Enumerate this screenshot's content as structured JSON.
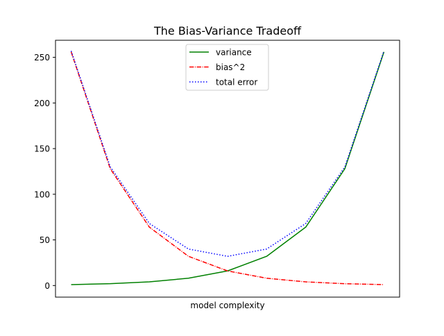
{
  "chart_data": {
    "type": "line",
    "title": "The Bias-Variance Tradeoff",
    "xlabel": "model complexity",
    "ylabel": "",
    "x": [
      0,
      1,
      2,
      3,
      4,
      5,
      6,
      7,
      8
    ],
    "xlim": [
      -0.4,
      8.4
    ],
    "ylim": [
      -12.7,
      268.7
    ],
    "yticks": [
      0,
      50,
      100,
      150,
      200,
      250
    ],
    "ytick_labels": [
      "0",
      "50",
      "100",
      "150",
      "200",
      "250"
    ],
    "show_xticks": false,
    "grid": false,
    "legend_position": "upper center",
    "series": [
      {
        "name": "variance",
        "color": "#008000",
        "linestyle": "solid",
        "values": [
          1,
          2,
          4,
          8,
          16,
          32,
          64,
          128,
          256
        ]
      },
      {
        "name": "bias^2",
        "color": "#ff0000",
        "linestyle": "dashdot",
        "values": [
          256,
          128,
          64,
          32,
          16,
          8,
          4,
          2,
          1
        ]
      },
      {
        "name": "total error",
        "color": "#0000ff",
        "linestyle": "dotted",
        "values": [
          257,
          130,
          68,
          40,
          32,
          40,
          68,
          130,
          257
        ]
      }
    ]
  }
}
